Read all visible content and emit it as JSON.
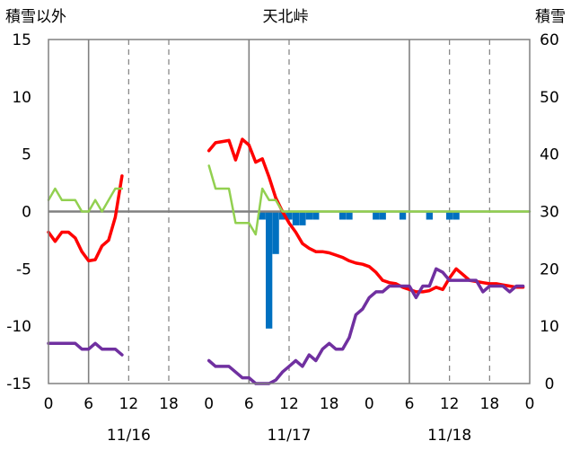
{
  "chart_data": {
    "type": "line",
    "title": "天北峠",
    "left_axis_title": "積雪以外",
    "right_axis_title": "積雪",
    "left_ylim": [
      -15,
      15
    ],
    "left_yticks": [
      "15",
      "10",
      "5",
      "0",
      "-5",
      "-10",
      "-15"
    ],
    "right_ylim": [
      0,
      60
    ],
    "right_yticks": [
      "60",
      "50",
      "40",
      "30",
      "20",
      "10",
      "0"
    ],
    "x_range_hours": [
      0,
      72
    ],
    "x_tick_labels": [
      "0",
      "6",
      "12",
      "18",
      "0",
      "6",
      "12",
      "18",
      "0",
      "6",
      "12",
      "18",
      "0"
    ],
    "date_labels": [
      {
        "hour": 12,
        "text": "11/16"
      },
      {
        "hour": 36,
        "text": "11/17"
      },
      {
        "hour": 60,
        "text": "11/18"
      }
    ],
    "grid": {
      "dashed_vertical_hours": [
        12,
        18,
        36,
        60,
        66
      ],
      "solid_vertical_hours": [
        6,
        30,
        54
      ]
    },
    "colors": {
      "temperature": "#ff0000",
      "green": "#92d050",
      "purple": "#7030a0",
      "snow_bars": "#0070c0",
      "zero_line": "#808080"
    },
    "series": [
      {
        "key": "temperature",
        "segments": [
          [
            [
              0,
              -1.8
            ],
            [
              1,
              -2.6
            ],
            [
              2,
              -1.8
            ],
            [
              3,
              -1.8
            ],
            [
              4,
              -2.3
            ],
            [
              5,
              -3.5
            ],
            [
              6,
              -4.3
            ],
            [
              7,
              -4.2
            ],
            [
              8,
              -3.0
            ],
            [
              9,
              -2.5
            ],
            [
              10,
              -0.5
            ],
            [
              11,
              3.1
            ]
          ],
          [
            [
              24,
              5.3
            ],
            [
              25,
              6.0
            ],
            [
              26,
              6.1
            ],
            [
              27,
              6.2
            ],
            [
              28,
              4.5
            ],
            [
              29,
              6.3
            ],
            [
              30,
              5.8
            ],
            [
              31,
              4.3
            ],
            [
              32,
              4.6
            ],
            [
              33,
              3.0
            ],
            [
              34,
              1.2
            ],
            [
              35,
              0.0
            ],
            [
              36,
              -1.0
            ],
            [
              37,
              -1.8
            ],
            [
              38,
              -2.8
            ],
            [
              39,
              -3.2
            ],
            [
              40,
              -3.5
            ],
            [
              41,
              -3.5
            ],
            [
              42,
              -3.6
            ],
            [
              43,
              -3.8
            ],
            [
              44,
              -4.0
            ],
            [
              45,
              -4.3
            ],
            [
              46,
              -4.5
            ],
            [
              47,
              -4.6
            ],
            [
              48,
              -4.8
            ],
            [
              49,
              -5.3
            ],
            [
              50,
              -6.0
            ],
            [
              51,
              -6.2
            ],
            [
              52,
              -6.3
            ],
            [
              53,
              -6.6
            ],
            [
              54,
              -6.8
            ],
            [
              55,
              -7.0
            ],
            [
              56,
              -7.0
            ],
            [
              57,
              -6.9
            ],
            [
              58,
              -6.6
            ],
            [
              59,
              -6.8
            ],
            [
              60,
              -5.8
            ],
            [
              61,
              -5.0
            ],
            [
              62,
              -5.5
            ],
            [
              63,
              -6.0
            ],
            [
              64,
              -6.1
            ],
            [
              65,
              -6.2
            ],
            [
              66,
              -6.3
            ],
            [
              67,
              -6.3
            ],
            [
              68,
              -6.4
            ],
            [
              69,
              -6.5
            ],
            [
              70,
              -6.6
            ],
            [
              71,
              -6.6
            ]
          ]
        ]
      },
      {
        "key": "green",
        "segments": [
          [
            [
              0,
              1.0
            ],
            [
              1,
              2.0
            ],
            [
              2,
              1.0
            ],
            [
              3,
              1.0
            ],
            [
              4,
              1.0
            ],
            [
              5,
              0.0
            ],
            [
              6,
              0.0
            ],
            [
              7,
              1.0
            ],
            [
              8,
              0.0
            ],
            [
              9,
              1.0
            ],
            [
              10,
              2.0
            ],
            [
              11,
              2.0
            ]
          ],
          [
            [
              24,
              4.0
            ],
            [
              25,
              2.0
            ],
            [
              26,
              2.0
            ],
            [
              27,
              2.0
            ],
            [
              28,
              -1.0
            ],
            [
              29,
              -1.0
            ],
            [
              30,
              -1.0
            ],
            [
              31,
              -2.0
            ],
            [
              32,
              2.0
            ],
            [
              33,
              1.0
            ],
            [
              34,
              1.0
            ],
            [
              35,
              0.0
            ],
            [
              36,
              0.0
            ],
            [
              37,
              0.0
            ],
            [
              38,
              0.0
            ],
            [
              39,
              0.0
            ],
            [
              40,
              0.0
            ],
            [
              48,
              0.0
            ],
            [
              60,
              0.0
            ],
            [
              72,
              0.0
            ]
          ]
        ]
      },
      {
        "key": "purple",
        "segments": [
          [
            [
              0,
              -11.5
            ],
            [
              1,
              -11.5
            ],
            [
              2,
              -11.5
            ],
            [
              3,
              -11.5
            ],
            [
              4,
              -11.5
            ],
            [
              5,
              -12.0
            ],
            [
              6,
              -12.0
            ],
            [
              7,
              -11.5
            ],
            [
              8,
              -12.0
            ],
            [
              9,
              -12.0
            ],
            [
              10,
              -12.0
            ],
            [
              11,
              -12.5
            ]
          ],
          [
            [
              24,
              -13.0
            ],
            [
              25,
              -13.5
            ],
            [
              26,
              -13.5
            ],
            [
              27,
              -13.5
            ],
            [
              28,
              -14.0
            ],
            [
              29,
              -14.5
            ],
            [
              30,
              -14.5
            ],
            [
              31,
              -15.0
            ],
            [
              32,
              -15.0
            ],
            [
              33,
              -15.0
            ],
            [
              34,
              -14.7
            ],
            [
              35,
              -14.0
            ],
            [
              36,
              -13.5
            ],
            [
              37,
              -13.0
            ],
            [
              38,
              -13.5
            ],
            [
              39,
              -12.5
            ],
            [
              40,
              -13.0
            ],
            [
              41,
              -12.0
            ],
            [
              42,
              -11.5
            ],
            [
              43,
              -12.0
            ],
            [
              44,
              -12.0
            ],
            [
              45,
              -11.0
            ],
            [
              46,
              -9.0
            ],
            [
              47,
              -8.5
            ],
            [
              48,
              -7.5
            ],
            [
              49,
              -7.0
            ],
            [
              50,
              -7.0
            ],
            [
              51,
              -6.5
            ],
            [
              52,
              -6.5
            ],
            [
              53,
              -6.5
            ],
            [
              54,
              -6.5
            ],
            [
              55,
              -7.5
            ],
            [
              56,
              -6.5
            ],
            [
              57,
              -6.5
            ],
            [
              58,
              -5.0
            ],
            [
              59,
              -5.3
            ],
            [
              60,
              -6.0
            ],
            [
              61,
              -6.0
            ],
            [
              62,
              -6.0
            ],
            [
              63,
              -6.0
            ],
            [
              64,
              -6.0
            ],
            [
              65,
              -7.0
            ],
            [
              66,
              -6.5
            ],
            [
              67,
              -6.5
            ],
            [
              68,
              -6.5
            ],
            [
              69,
              -7.0
            ],
            [
              70,
              -6.5
            ],
            [
              71,
              -6.5
            ]
          ]
        ]
      }
    ],
    "snow_bars": [
      {
        "hour": 32,
        "value": 30.0
      },
      {
        "hour": 33,
        "value": 11.0
      },
      {
        "hour": 34,
        "value": 24.0
      },
      {
        "hour": 35,
        "value": 30.0
      },
      {
        "hour": 36,
        "value": 30.0
      },
      {
        "hour": 37,
        "value": 29.0
      },
      {
        "hour": 38,
        "value": 29.0
      },
      {
        "hour": 39,
        "value": 30.0
      },
      {
        "hour": 40,
        "value": 30.0
      },
      {
        "hour": 44,
        "value": 30.0
      },
      {
        "hour": 45,
        "value": 30.0
      },
      {
        "hour": 49,
        "value": 30.0
      },
      {
        "hour": 50,
        "value": 30.0
      },
      {
        "hour": 53,
        "value": 30.0
      },
      {
        "hour": 57,
        "value": 30.0
      },
      {
        "hour": 60,
        "value": 30.0
      },
      {
        "hour": 61,
        "value": 30.0
      }
    ]
  }
}
